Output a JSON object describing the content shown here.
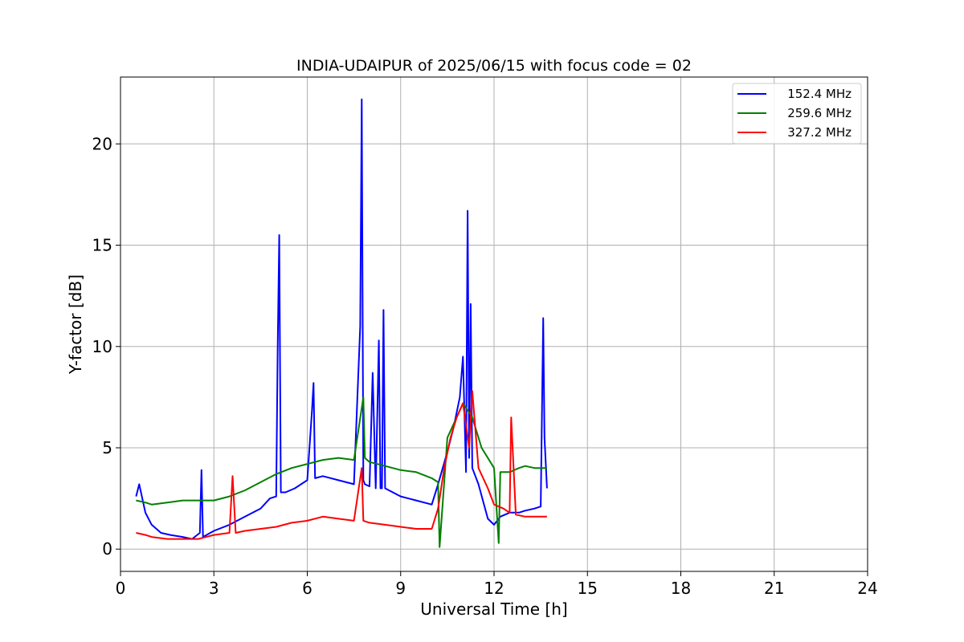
{
  "chart_data": {
    "type": "line",
    "title": "INDIA-UDAIPUR of 2025/06/15 with focus code = 02",
    "xlabel": "Universal Time [h]",
    "ylabel": "Y-factor [dB]",
    "xlim": [
      0,
      24
    ],
    "ylim": [
      -1.1,
      23.3
    ],
    "xticks": [
      0,
      3,
      6,
      9,
      12,
      15,
      18,
      21,
      24
    ],
    "yticks": [
      0,
      5,
      10,
      15,
      20
    ],
    "grid": true,
    "legend_position": "top-right",
    "series": [
      {
        "name": "152.4 MHz",
        "color": "#0000ff",
        "x": [
          0.5,
          0.6,
          0.8,
          1.0,
          1.3,
          1.6,
          2.0,
          2.3,
          2.55,
          2.6,
          2.65,
          3.0,
          3.5,
          4.0,
          4.5,
          4.8,
          5.0,
          5.05,
          5.1,
          5.15,
          5.3,
          5.6,
          6.0,
          6.15,
          6.2,
          6.25,
          6.5,
          7.0,
          7.5,
          7.7,
          7.75,
          7.8,
          7.85,
          8.0,
          8.1,
          8.2,
          8.3,
          8.35,
          8.4,
          8.45,
          8.5,
          9.0,
          9.5,
          10.0,
          10.2,
          10.5,
          10.7,
          10.9,
          11.0,
          11.1,
          11.15,
          11.2,
          11.25,
          11.3,
          11.5,
          11.8,
          12.0,
          12.2,
          12.5,
          12.8,
          13.0,
          13.3,
          13.5,
          13.58,
          13.62,
          13.7
        ],
        "y": [
          2.6,
          3.2,
          1.8,
          1.2,
          0.8,
          0.7,
          0.6,
          0.5,
          0.8,
          3.9,
          0.6,
          0.9,
          1.2,
          1.6,
          2.0,
          2.5,
          2.6,
          10.0,
          15.5,
          2.8,
          2.8,
          3.0,
          3.4,
          6.8,
          8.2,
          3.5,
          3.6,
          3.4,
          3.2,
          11.0,
          22.2,
          3.4,
          3.2,
          3.1,
          8.7,
          3.0,
          10.3,
          3.0,
          3.0,
          11.8,
          3.0,
          2.6,
          2.4,
          2.2,
          3.2,
          4.8,
          6.0,
          7.5,
          9.5,
          3.8,
          16.7,
          4.5,
          12.1,
          4.0,
          3.2,
          1.5,
          1.2,
          1.6,
          1.8,
          1.8,
          1.9,
          2.0,
          2.1,
          11.4,
          5.5,
          3.0
        ]
      },
      {
        "name": "259.6 MHz",
        "color": "#008000",
        "x": [
          0.5,
          0.8,
          1.0,
          1.5,
          2.0,
          2.5,
          3.0,
          3.5,
          4.0,
          4.5,
          5.0,
          5.5,
          6.0,
          6.5,
          7.0,
          7.5,
          7.8,
          7.85,
          8.0,
          8.5,
          9.0,
          9.5,
          10.0,
          10.2,
          10.25,
          10.5,
          10.8,
          11.0,
          11.3,
          11.6,
          12.0,
          12.15,
          12.2,
          12.5,
          12.8,
          13.0,
          13.3,
          13.7
        ],
        "y": [
          2.4,
          2.3,
          2.2,
          2.3,
          2.4,
          2.4,
          2.4,
          2.6,
          2.9,
          3.3,
          3.7,
          4.0,
          4.2,
          4.4,
          4.5,
          4.4,
          7.5,
          4.5,
          4.3,
          4.1,
          3.9,
          3.8,
          3.5,
          3.3,
          0.1,
          5.5,
          6.5,
          7.2,
          6.5,
          5.0,
          4.0,
          0.3,
          3.8,
          3.8,
          4.0,
          4.1,
          4.0,
          4.0
        ]
      },
      {
        "name": "327.2 MHz",
        "color": "#ff0000",
        "x": [
          0.5,
          0.8,
          1.0,
          1.5,
          2.0,
          2.5,
          3.0,
          3.5,
          3.6,
          3.7,
          4.0,
          4.5,
          5.0,
          5.5,
          6.0,
          6.5,
          7.0,
          7.5,
          7.75,
          7.8,
          8.0,
          8.5,
          9.0,
          9.5,
          10.0,
          10.2,
          10.4,
          10.6,
          10.8,
          11.0,
          11.2,
          11.3,
          11.5,
          11.8,
          12.0,
          12.3,
          12.5,
          12.55,
          12.7,
          13.0,
          13.3,
          13.7
        ],
        "y": [
          0.8,
          0.7,
          0.6,
          0.5,
          0.5,
          0.5,
          0.7,
          0.8,
          3.6,
          0.8,
          0.9,
          1.0,
          1.1,
          1.3,
          1.4,
          1.6,
          1.5,
          1.4,
          4.0,
          1.4,
          1.3,
          1.2,
          1.1,
          1.0,
          1.0,
          2.0,
          4.0,
          5.5,
          6.5,
          7.2,
          5.0,
          7.8,
          4.0,
          3.0,
          2.2,
          2.0,
          1.8,
          6.5,
          1.7,
          1.6,
          1.6,
          1.6
        ]
      }
    ]
  }
}
